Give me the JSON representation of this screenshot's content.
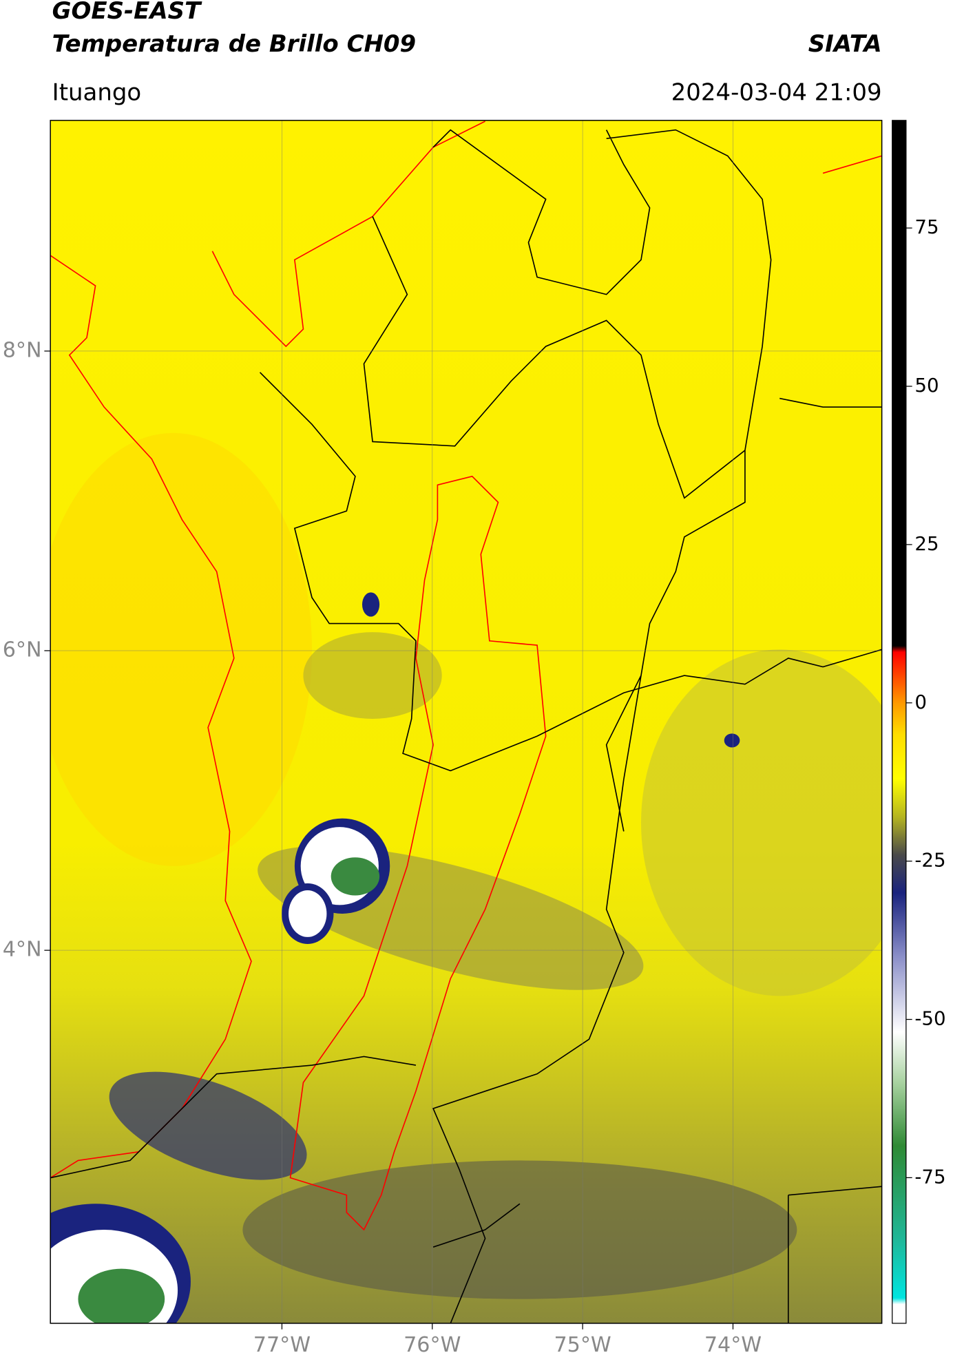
{
  "header": {
    "title": "GOES-EAST",
    "subtitle": "Temperatura de Brillo CH09",
    "source": "SIATA",
    "region": "Ituango",
    "datetime": "2024-03-04 21:09"
  },
  "map": {
    "xlim": [
      -78.54,
      -73.01
    ],
    "ylim": [
      1.51,
      9.54
    ],
    "xticks": [
      {
        "value": -77,
        "label": "77°W"
      },
      {
        "value": -76,
        "label": "76°W"
      },
      {
        "value": -75,
        "label": "75°W"
      },
      {
        "value": -74,
        "label": "74°W"
      }
    ],
    "yticks": [
      {
        "value": 8,
        "label": "8°N"
      },
      {
        "value": 6,
        "label": "6°N"
      },
      {
        "value": 4,
        "label": "4°N"
      }
    ],
    "grid": true
  },
  "colorbar": {
    "ylim": [
      -98,
      92
    ],
    "ticks": [
      75,
      50,
      25,
      0,
      -25,
      -50,
      -75
    ],
    "stops": [
      {
        "value": -98,
        "color": "#ffffff"
      },
      {
        "value": -95,
        "color": "#ffffff"
      },
      {
        "value": -94,
        "color": "#00e5e0"
      },
      {
        "value": -85,
        "color": "#1fb89a"
      },
      {
        "value": -70,
        "color": "#2f8a35"
      },
      {
        "value": -60,
        "color": "#a8d2a0"
      },
      {
        "value": -52,
        "color": "#ffffff"
      },
      {
        "value": -40,
        "color": "#8a8ec8"
      },
      {
        "value": -30,
        "color": "#1a237e"
      },
      {
        "value": -24,
        "color": "#4a4a4a"
      },
      {
        "value": -18,
        "color": "#b5b520"
      },
      {
        "value": -12,
        "color": "#ffff00"
      },
      {
        "value": -5,
        "color": "#ffdd00"
      },
      {
        "value": 0,
        "color": "#ff9900"
      },
      {
        "value": 8,
        "color": "#ff0000"
      },
      {
        "value": 9,
        "color": "#000000"
      },
      {
        "value": 92,
        "color": "#000000"
      }
    ]
  }
}
